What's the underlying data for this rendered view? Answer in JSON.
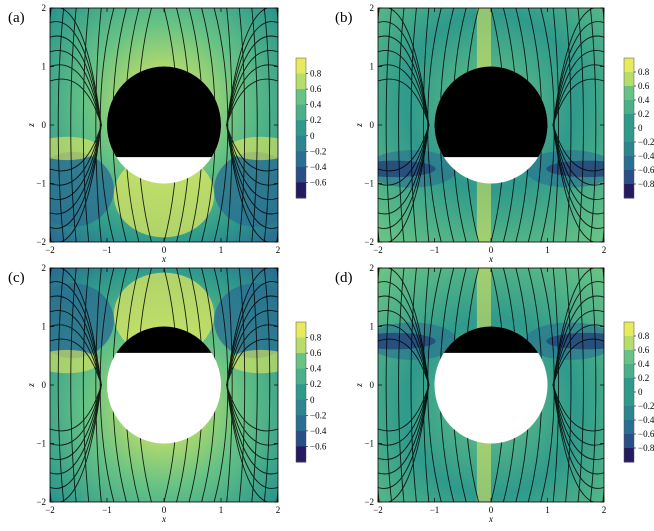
{
  "chart_data": [
    {
      "type": "heatmap",
      "panel_label": "(a)",
      "xlabel": "x",
      "ylabel": "z",
      "xlim": [
        -2,
        2
      ],
      "ylim": [
        -2,
        2
      ],
      "xticks": [
        "−2",
        "−1",
        "0",
        "1",
        "2"
      ],
      "yticks": [
        "−2",
        "−1",
        "0",
        "1",
        "2"
      ],
      "colorbar_ticks": [
        "0.8",
        "0.6",
        "0.4",
        "0.2",
        "0",
        "−0.2",
        "−0.4",
        "−0.6"
      ],
      "colorbar_range": [
        -0.7,
        0.9
      ],
      "obstacle": {
        "center": [
          0,
          0
        ],
        "radius": 1,
        "black_region": "z > -0.55"
      },
      "streamlines": true
    },
    {
      "type": "heatmap",
      "panel_label": "(b)",
      "xlabel": "x",
      "ylabel": "z",
      "xlim": [
        -2,
        2
      ],
      "ylim": [
        -2,
        2
      ],
      "xticks": [
        "−2",
        "−1",
        "0",
        "1",
        "2"
      ],
      "yticks": [
        "−2",
        "−1",
        "0",
        "1",
        "2"
      ],
      "colorbar_ticks": [
        "0.8",
        "0.6",
        "0.4",
        "0.2",
        "0",
        "−0.2",
        "−0.4",
        "−0.6",
        "−0.8"
      ],
      "colorbar_range": [
        -0.9,
        0.9
      ],
      "obstacle": {
        "center": [
          0,
          0
        ],
        "radius": 1,
        "black_region": "z > -0.55"
      },
      "streamlines": true
    },
    {
      "type": "heatmap",
      "panel_label": "(c)",
      "xlabel": "x",
      "ylabel": "z",
      "xlim": [
        -2,
        2
      ],
      "ylim": [
        -2,
        2
      ],
      "xticks": [
        "−2",
        "−1",
        "0",
        "1",
        "2"
      ],
      "yticks": [
        "−2",
        "−1",
        "0",
        "1",
        "2"
      ],
      "colorbar_ticks": [
        "0.8",
        "0.6",
        "0.4",
        "0.2",
        "0",
        "−0.2",
        "−0.4",
        "−0.6"
      ],
      "colorbar_range": [
        -0.7,
        0.9
      ],
      "obstacle": {
        "center": [
          0,
          0
        ],
        "radius": 1,
        "black_region": "z > 0.55"
      },
      "streamlines": true
    },
    {
      "type": "heatmap",
      "panel_label": "(d)",
      "xlabel": "x",
      "ylabel": "z",
      "xlim": [
        -2,
        2
      ],
      "ylim": [
        -2,
        2
      ],
      "xticks": [
        "−2",
        "−1",
        "0",
        "1",
        "2"
      ],
      "yticks": [
        "−2",
        "−1",
        "0",
        "1",
        "2"
      ],
      "colorbar_ticks": [
        "0.8",
        "0.6",
        "0.4",
        "0.2",
        "0",
        "−0.2",
        "−0.4",
        "−0.6",
        "−0.8"
      ],
      "colorbar_range": [
        -0.9,
        0.9
      ],
      "obstacle": {
        "center": [
          0,
          0
        ],
        "radius": 1,
        "black_region": "z > 0.55"
      },
      "streamlines": true
    }
  ],
  "colors": {
    "high": "#e6ea5c",
    "mid_high": "#66c285",
    "mid": "#2f9a8c",
    "mid_low": "#2a6f91",
    "low": "#241a5e",
    "obstacle_fill": "#000000",
    "obstacle_open": "#ffffff",
    "streamline": "#000000"
  }
}
